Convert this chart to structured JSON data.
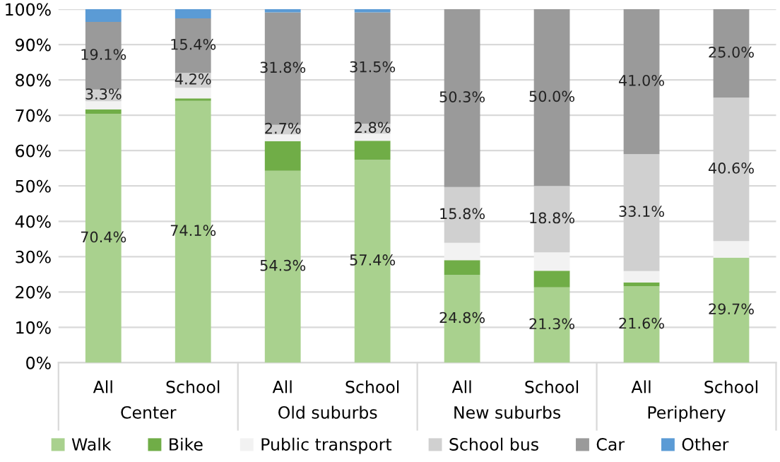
{
  "chart_data": {
    "type": "bar",
    "stacked": true,
    "categories": [
      "All",
      "School",
      "All",
      "School",
      "All",
      "School",
      "All",
      "School"
    ],
    "annotations": [
      "Center",
      "Old suburbs",
      "New suburbs",
      "Periphery"
    ],
    "series": [
      {
        "name": "Walk",
        "color": "#a9d18e",
        "values": [
          70.4,
          74.1,
          54.3,
          57.4,
          24.8,
          21.3,
          21.6,
          29.7
        ],
        "value_labels": [
          "70.4%",
          "74.1%",
          "54.3%",
          "57.4%",
          "24.8%",
          "21.3%",
          "21.6%",
          "29.7%"
        ]
      },
      {
        "name": "Bike",
        "color": "#70ad47",
        "values": [
          1.3,
          0.7,
          8.4,
          5.4,
          4.2,
          4.7,
          1.1,
          0
        ]
      },
      {
        "name": "Public transport",
        "color": "#f2f2f2",
        "values": [
          2.3,
          3.0,
          1.9,
          2.0,
          4.9,
          5.2,
          3.2,
          4.7
        ]
      },
      {
        "name": "School bus",
        "color": "#d0d0d0",
        "values": [
          3.3,
          4.2,
          2.7,
          2.8,
          15.8,
          18.8,
          33.1,
          40.6
        ],
        "value_labels": [
          "3.3%",
          "4.2%",
          "2.7%",
          "2.8%",
          "15.8%",
          "18.8%",
          "33.1%",
          "40.6%"
        ]
      },
      {
        "name": "Car",
        "color": "#9a9a9a",
        "values": [
          19.1,
          15.4,
          31.8,
          31.5,
          50.3,
          50.0,
          41.0,
          25.0
        ],
        "value_labels": [
          "19.1%",
          "15.4%",
          "31.8%",
          "31.5%",
          "50.3%",
          "50.0%",
          "41.0%",
          "25.0%"
        ]
      },
      {
        "name": "Other",
        "color": "#5b9bd5",
        "values": [
          3.6,
          2.6,
          0.9,
          0.9,
          0,
          0,
          0,
          0
        ]
      }
    ],
    "ylim": [
      0,
      100
    ],
    "yticks": [
      {
        "value": 0,
        "label": "0%"
      },
      {
        "value": 10,
        "label": "10%"
      },
      {
        "value": 20,
        "label": "20%"
      },
      {
        "value": 30,
        "label": "30%"
      },
      {
        "value": 40,
        "label": "40%"
      },
      {
        "value": 50,
        "label": "50%"
      },
      {
        "value": 60,
        "label": "60%"
      },
      {
        "value": 70,
        "label": "70%"
      },
      {
        "value": 80,
        "label": "80%"
      },
      {
        "value": 90,
        "label": "90%"
      },
      {
        "value": 100,
        "label": "100%"
      }
    ],
    "grid": "y",
    "legend": "bottom"
  }
}
